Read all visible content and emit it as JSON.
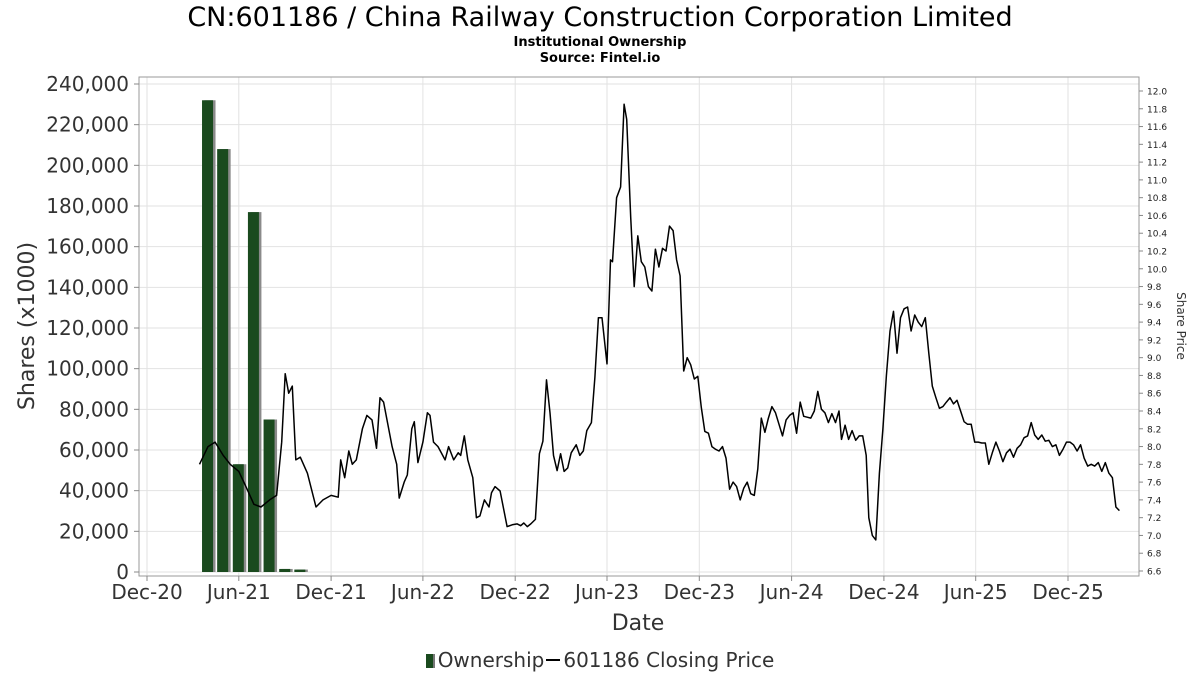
{
  "chart_data": {
    "type": "bar+line",
    "title": "CN:601186 / China Railway Construction Corporation Limited",
    "subtitle_lines": [
      "Institutional Ownership",
      "Source: Fintel.io"
    ],
    "xlabel": "Date",
    "ylabel_left": "Shares (x1000)",
    "ylabel_right": "Share Price",
    "x_ticks": [
      "Dec-20",
      "Jun-21",
      "Dec-21",
      "Jun-22",
      "Dec-22",
      "Jun-23",
      "Dec-23",
      "Jun-24",
      "Dec-24",
      "Jun-25",
      "Dec-25"
    ],
    "y_left_ticks": [
      "0",
      "20,000",
      "40,000",
      "60,000",
      "80,000",
      "100,000",
      "120,000",
      "140,000",
      "160,000",
      "180,000",
      "200,000",
      "220,000",
      "240,000"
    ],
    "y_right_ticks": [
      "6.6",
      "6.8",
      "7.0",
      "7.2",
      "7.4",
      "7.6",
      "7.8",
      "8.0",
      "8.2",
      "8.4",
      "8.6",
      "8.8",
      "9.0",
      "9.2",
      "9.4",
      "9.6",
      "9.8",
      "10.0",
      "10.2",
      "10.4",
      "10.6",
      "10.8",
      "11.0",
      "11.2",
      "11.4",
      "11.6",
      "11.8",
      "12.0"
    ],
    "ylim_left": [
      0,
      245000
    ],
    "ylim_right": [
      6.6,
      12.1
    ],
    "grid": true,
    "legend_position": "bottom-center",
    "series": [
      {
        "name": "Ownership",
        "type": "bar",
        "axis": "left",
        "color": "#1a4a1e",
        "points": [
          {
            "date": "2021-03-31",
            "value": 232000
          },
          {
            "date": "2021-04-30",
            "value": 208000
          },
          {
            "date": "2021-05-31",
            "value": 53000
          },
          {
            "date": "2021-06-30",
            "value": 177000
          },
          {
            "date": "2021-07-31",
            "value": 75000
          },
          {
            "date": "2021-08-31",
            "value": 1500
          },
          {
            "date": "2021-09-30",
            "value": 1200
          }
        ]
      },
      {
        "name": "601186 Closing Price",
        "type": "line",
        "axis": "right",
        "color": "#000000",
        "points": [
          [
            "2021-03-15",
            7.8
          ],
          [
            "2021-04-01",
            8.0
          ],
          [
            "2021-04-15",
            8.05
          ],
          [
            "2021-05-01",
            7.9
          ],
          [
            "2021-05-15",
            7.8
          ],
          [
            "2021-06-01",
            7.72
          ],
          [
            "2021-06-15",
            7.55
          ],
          [
            "2021-07-01",
            7.35
          ],
          [
            "2021-07-15",
            7.32
          ],
          [
            "2021-08-01",
            7.4
          ],
          [
            "2021-08-15",
            7.45
          ],
          [
            "2021-08-25",
            8.05
          ],
          [
            "2021-09-01",
            8.82
          ],
          [
            "2021-09-08",
            8.6
          ],
          [
            "2021-09-15",
            8.68
          ],
          [
            "2021-09-22",
            7.85
          ],
          [
            "2021-10-01",
            7.88
          ],
          [
            "2021-10-15",
            7.7
          ],
          [
            "2021-11-01",
            7.32
          ],
          [
            "2021-11-15",
            7.4
          ],
          [
            "2021-12-01",
            7.45
          ],
          [
            "2021-12-15",
            7.43
          ],
          [
            "2021-12-20",
            7.85
          ],
          [
            "2021-12-28",
            7.65
          ],
          [
            "2022-01-05",
            7.95
          ],
          [
            "2022-01-12",
            7.8
          ],
          [
            "2022-01-20",
            7.85
          ],
          [
            "2022-02-01",
            8.2
          ],
          [
            "2022-02-10",
            8.35
          ],
          [
            "2022-02-20",
            8.3
          ],
          [
            "2022-03-01",
            7.98
          ],
          [
            "2022-03-08",
            8.55
          ],
          [
            "2022-03-15",
            8.5
          ],
          [
            "2022-04-01",
            8.0
          ],
          [
            "2022-04-10",
            7.8
          ],
          [
            "2022-04-15",
            7.42
          ],
          [
            "2022-04-25",
            7.6
          ],
          [
            "2022-05-01",
            7.68
          ],
          [
            "2022-05-10",
            8.2
          ],
          [
            "2022-05-15",
            8.28
          ],
          [
            "2022-05-22",
            7.82
          ],
          [
            "2022-06-01",
            8.05
          ],
          [
            "2022-06-10",
            8.38
          ],
          [
            "2022-06-15",
            8.35
          ],
          [
            "2022-06-22",
            8.05
          ],
          [
            "2022-07-01",
            8.0
          ],
          [
            "2022-07-15",
            7.85
          ],
          [
            "2022-07-22",
            8.0
          ],
          [
            "2022-08-01",
            7.85
          ],
          [
            "2022-08-10",
            7.93
          ],
          [
            "2022-08-15",
            7.9
          ],
          [
            "2022-08-22",
            8.12
          ],
          [
            "2022-08-29",
            7.85
          ],
          [
            "2022-09-08",
            7.65
          ],
          [
            "2022-09-15",
            7.2
          ],
          [
            "2022-09-22",
            7.22
          ],
          [
            "2022-10-01",
            7.4
          ],
          [
            "2022-10-10",
            7.32
          ],
          [
            "2022-10-15",
            7.48
          ],
          [
            "2022-10-22",
            7.55
          ],
          [
            "2022-11-01",
            7.5
          ],
          [
            "2022-11-15",
            7.1
          ],
          [
            "2022-11-25",
            7.12
          ],
          [
            "2022-12-05",
            7.13
          ],
          [
            "2022-12-12",
            7.11
          ],
          [
            "2022-12-18",
            7.14
          ],
          [
            "2022-12-25",
            7.1
          ],
          [
            "2023-01-01",
            7.13
          ],
          [
            "2023-01-10",
            7.18
          ],
          [
            "2023-01-18",
            7.92
          ],
          [
            "2023-01-25",
            8.06
          ],
          [
            "2023-02-01",
            8.75
          ],
          [
            "2023-02-08",
            8.38
          ],
          [
            "2023-02-15",
            7.9
          ],
          [
            "2023-02-22",
            7.73
          ],
          [
            "2023-03-01",
            7.92
          ],
          [
            "2023-03-08",
            7.72
          ],
          [
            "2023-03-15",
            7.76
          ],
          [
            "2023-03-22",
            7.93
          ],
          [
            "2023-04-01",
            8.02
          ],
          [
            "2023-04-08",
            7.9
          ],
          [
            "2023-04-15",
            7.95
          ],
          [
            "2023-04-22",
            8.18
          ],
          [
            "2023-05-01",
            8.27
          ],
          [
            "2023-05-08",
            8.78
          ],
          [
            "2023-05-15",
            9.45
          ],
          [
            "2023-05-22",
            9.45
          ],
          [
            "2023-06-01",
            8.93
          ],
          [
            "2023-06-08",
            10.1
          ],
          [
            "2023-06-12",
            10.08
          ],
          [
            "2023-06-20",
            10.8
          ],
          [
            "2023-06-28",
            10.92
          ],
          [
            "2023-07-05",
            11.85
          ],
          [
            "2023-07-10",
            11.68
          ],
          [
            "2023-07-18",
            10.58
          ],
          [
            "2023-07-25",
            9.8
          ],
          [
            "2023-08-01",
            10.37
          ],
          [
            "2023-08-08",
            10.08
          ],
          [
            "2023-08-15",
            10.02
          ],
          [
            "2023-08-22",
            9.8
          ],
          [
            "2023-08-29",
            9.75
          ],
          [
            "2023-09-05",
            10.22
          ],
          [
            "2023-09-12",
            10.02
          ],
          [
            "2023-09-19",
            10.23
          ],
          [
            "2023-09-26",
            10.2
          ],
          [
            "2023-10-03",
            10.48
          ],
          [
            "2023-10-10",
            10.43
          ],
          [
            "2023-10-17",
            10.1
          ],
          [
            "2023-10-24",
            9.92
          ],
          [
            "2023-10-31",
            8.85
          ],
          [
            "2023-11-07",
            9.0
          ],
          [
            "2023-11-14",
            8.92
          ],
          [
            "2023-11-21",
            8.76
          ],
          [
            "2023-11-28",
            8.79
          ],
          [
            "2023-12-05",
            8.44
          ],
          [
            "2023-12-12",
            8.17
          ],
          [
            "2023-12-19",
            8.15
          ],
          [
            "2023-12-26",
            8.0
          ],
          [
            "2024-01-02",
            7.97
          ],
          [
            "2024-01-09",
            7.95
          ],
          [
            "2024-01-16",
            8.0
          ],
          [
            "2024-01-23",
            7.87
          ],
          [
            "2024-01-30",
            7.52
          ],
          [
            "2024-02-06",
            7.6
          ],
          [
            "2024-02-13",
            7.55
          ],
          [
            "2024-02-20",
            7.4
          ],
          [
            "2024-02-27",
            7.53
          ],
          [
            "2024-03-05",
            7.6
          ],
          [
            "2024-03-12",
            7.47
          ],
          [
            "2024-03-19",
            7.45
          ],
          [
            "2024-03-26",
            7.75
          ],
          [
            "2024-04-02",
            8.32
          ],
          [
            "2024-04-09",
            8.16
          ],
          [
            "2024-04-16",
            8.32
          ],
          [
            "2024-04-23",
            8.45
          ],
          [
            "2024-04-30",
            8.38
          ],
          [
            "2024-05-07",
            8.25
          ],
          [
            "2024-05-14",
            8.12
          ],
          [
            "2024-05-21",
            8.3
          ],
          [
            "2024-05-28",
            8.35
          ],
          [
            "2024-06-04",
            8.38
          ],
          [
            "2024-06-11",
            8.15
          ],
          [
            "2024-06-18",
            8.5
          ],
          [
            "2024-06-25",
            8.34
          ],
          [
            "2024-07-02",
            8.33
          ],
          [
            "2024-07-09",
            8.32
          ],
          [
            "2024-07-16",
            8.4
          ],
          [
            "2024-07-23",
            8.62
          ],
          [
            "2024-07-30",
            8.42
          ],
          [
            "2024-08-06",
            8.38
          ],
          [
            "2024-08-13",
            8.27
          ],
          [
            "2024-08-20",
            8.37
          ],
          [
            "2024-08-27",
            8.27
          ],
          [
            "2024-09-03",
            8.4
          ],
          [
            "2024-09-08",
            8.08
          ],
          [
            "2024-09-15",
            8.24
          ],
          [
            "2024-09-22",
            8.08
          ],
          [
            "2024-09-29",
            8.18
          ],
          [
            "2024-10-06",
            8.07
          ],
          [
            "2024-10-13",
            8.12
          ],
          [
            "2024-10-20",
            8.12
          ],
          [
            "2024-10-27",
            7.9
          ],
          [
            "2024-11-01",
            7.2
          ],
          [
            "2024-11-08",
            7.0
          ],
          [
            "2024-11-15",
            6.95
          ],
          [
            "2024-11-22",
            7.7
          ],
          [
            "2024-11-29",
            8.2
          ],
          [
            "2024-12-06",
            8.8
          ],
          [
            "2024-12-13",
            9.3
          ],
          [
            "2024-12-20",
            9.52
          ],
          [
            "2024-12-27",
            9.05
          ],
          [
            "2025-01-03",
            9.45
          ],
          [
            "2025-01-10",
            9.55
          ],
          [
            "2025-01-17",
            9.57
          ],
          [
            "2025-01-24",
            9.3
          ],
          [
            "2025-01-31",
            9.48
          ],
          [
            "2025-02-07",
            9.4
          ],
          [
            "2025-02-14",
            9.35
          ],
          [
            "2025-02-21",
            9.45
          ],
          [
            "2025-02-28",
            9.05
          ],
          [
            "2025-03-07",
            8.68
          ],
          [
            "2025-03-14",
            8.55
          ],
          [
            "2025-03-21",
            8.43
          ],
          [
            "2025-03-28",
            8.45
          ],
          [
            "2025-04-04",
            8.5
          ],
          [
            "2025-04-11",
            8.55
          ],
          [
            "2025-04-18",
            8.48
          ],
          [
            "2025-04-25",
            8.52
          ],
          [
            "2025-05-02",
            8.4
          ],
          [
            "2025-05-09",
            8.28
          ],
          [
            "2025-05-16",
            8.25
          ],
          [
            "2025-05-23",
            8.25
          ],
          [
            "2025-05-30",
            8.05
          ],
          [
            "2025-06-06",
            8.05
          ],
          [
            "2025-06-13",
            8.04
          ],
          [
            "2025-06-20",
            8.04
          ],
          [
            "2025-06-27",
            7.8
          ],
          [
            "2025-07-04",
            7.93
          ],
          [
            "2025-07-11",
            8.05
          ],
          [
            "2025-07-18",
            7.95
          ],
          [
            "2025-07-25",
            7.83
          ],
          [
            "2025-08-01",
            7.93
          ],
          [
            "2025-08-08",
            7.97
          ],
          [
            "2025-08-15",
            7.88
          ],
          [
            "2025-08-22",
            7.98
          ],
          [
            "2025-08-29",
            8.02
          ],
          [
            "2025-09-05",
            8.1
          ],
          [
            "2025-09-12",
            8.12
          ],
          [
            "2025-09-19",
            8.27
          ],
          [
            "2025-09-26",
            8.13
          ],
          [
            "2025-10-03",
            8.08
          ],
          [
            "2025-10-10",
            8.13
          ],
          [
            "2025-10-17",
            8.06
          ],
          [
            "2025-10-24",
            8.07
          ],
          [
            "2025-10-31",
            8.0
          ],
          [
            "2025-11-07",
            8.02
          ],
          [
            "2025-11-14",
            7.9
          ],
          [
            "2025-11-21",
            7.97
          ],
          [
            "2025-11-28",
            8.05
          ],
          [
            "2025-12-05",
            8.05
          ],
          [
            "2025-12-12",
            8.02
          ],
          [
            "2025-12-19",
            7.95
          ],
          [
            "2025-12-26",
            8.02
          ],
          [
            "2026-01-02",
            7.87
          ],
          [
            "2026-01-09",
            7.78
          ],
          [
            "2026-01-16",
            7.8
          ],
          [
            "2026-01-23",
            7.78
          ],
          [
            "2026-01-30",
            7.82
          ],
          [
            "2026-02-06",
            7.72
          ],
          [
            "2026-02-13",
            7.82
          ],
          [
            "2026-02-20",
            7.7
          ],
          [
            "2026-02-27",
            7.65
          ],
          [
            "2026-03-06",
            7.32
          ],
          [
            "2026-03-13",
            7.28
          ]
        ]
      }
    ]
  }
}
